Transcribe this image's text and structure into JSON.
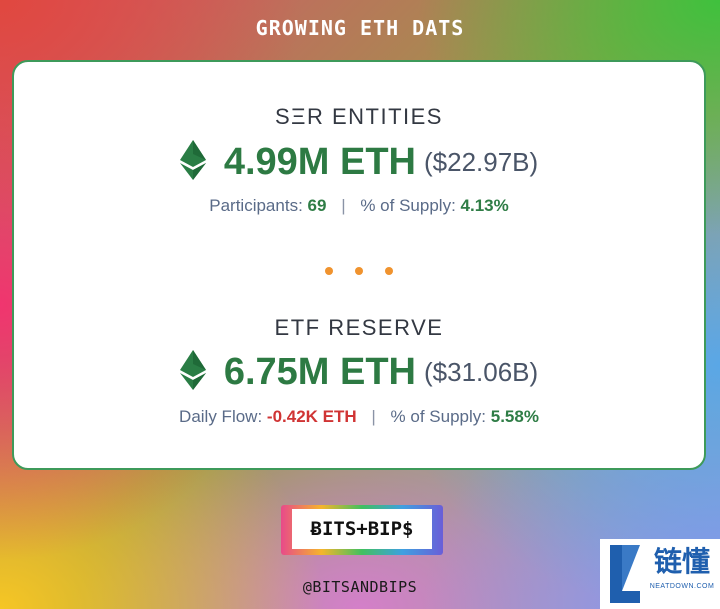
{
  "header": {
    "title": "GROWING ETH DATS"
  },
  "strategic_entities": {
    "title": "SΞR ENTITIES",
    "amount": "4.99M ETH",
    "usd": "($22.97B)",
    "participants_label": "Participants:",
    "participants_value": "69",
    "supply_label": "% of Supply:",
    "supply_value": "4.13%",
    "icon": "ethereum-icon"
  },
  "etf_reserve": {
    "title": "ETF RESERVE",
    "amount": "6.75M ETH",
    "usd": "($31.06B)",
    "flow_label": "Daily Flow:",
    "flow_value": "-0.42K ETH",
    "supply_label": "% of Supply:",
    "supply_value": "5.58%",
    "icon": "ethereum-icon"
  },
  "brand": {
    "logo_text": "ɃITS+BIP$",
    "handle": "@BITSANDBIPS"
  },
  "watermark": {
    "text": "链懂",
    "subtext": "NEATDOWN.COM"
  },
  "colors": {
    "value_green": "#2d7a43",
    "negative_red": "#d03434",
    "dot_orange": "#f0932e",
    "card_border": "#3e9a5a"
  }
}
